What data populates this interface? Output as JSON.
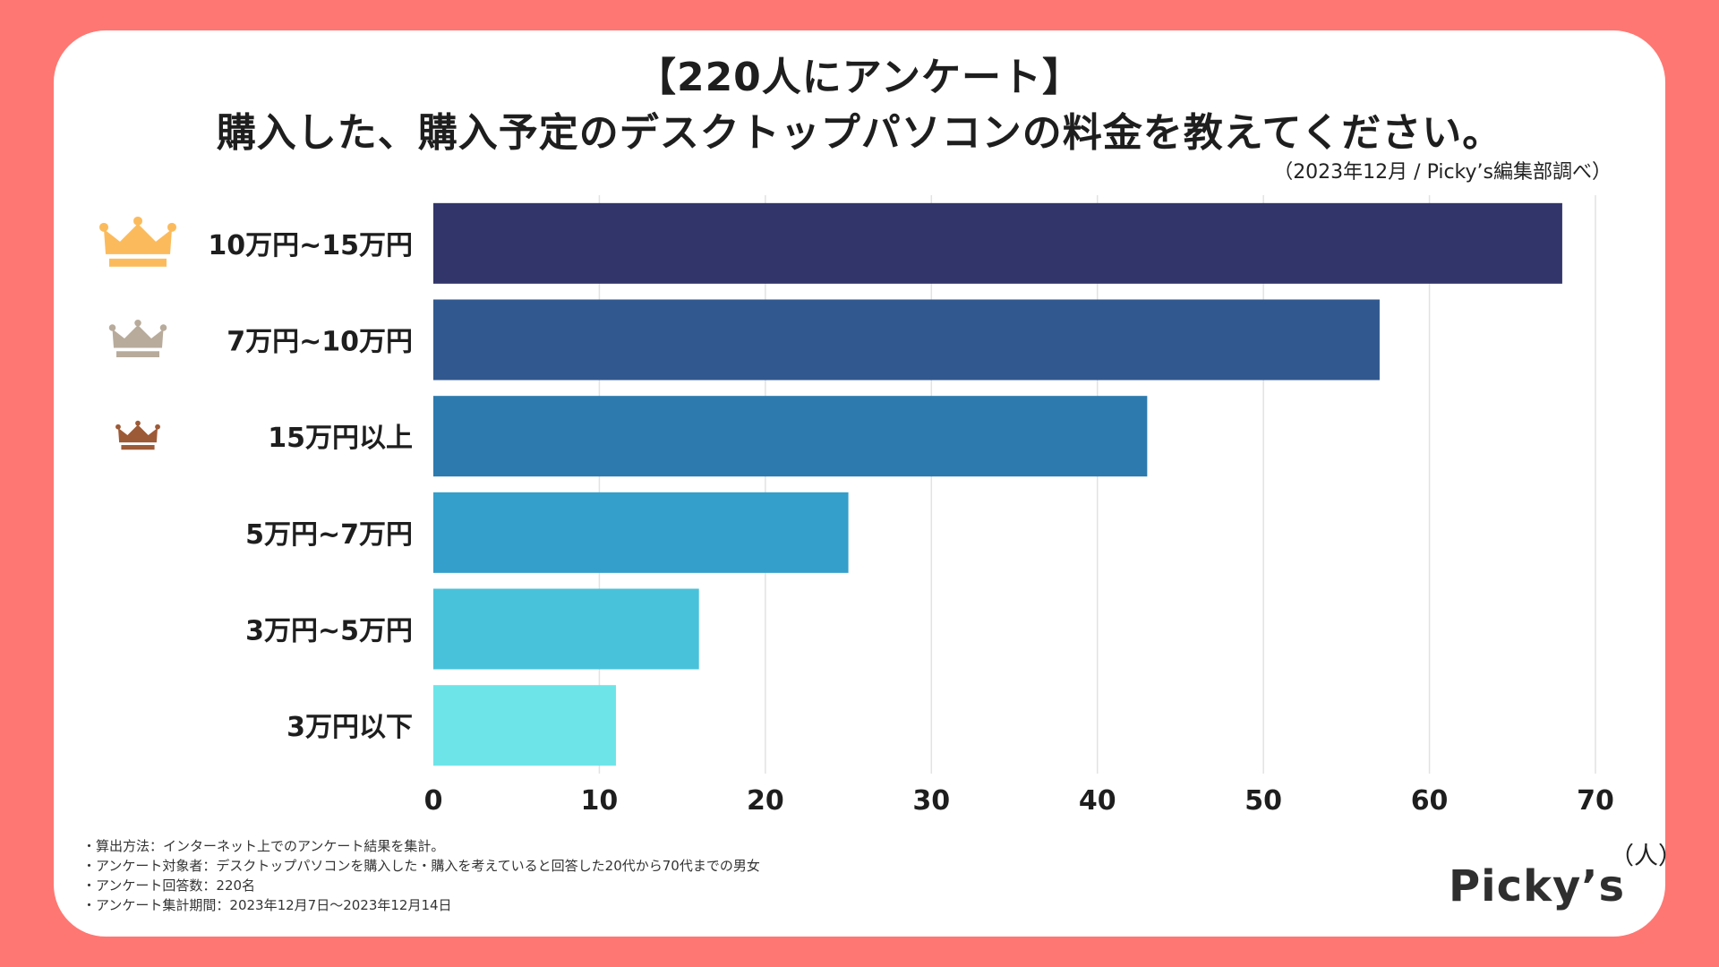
{
  "header": {
    "title_line1": "【220人にアンケート】",
    "title_line2": "購入した、購入予定のデスクトップパソコンの料金を教えてください。",
    "source": "（2023年12月 / Picky’s編集部調べ）"
  },
  "chart_data": {
    "type": "bar",
    "orientation": "horizontal",
    "categories": [
      "10万円~15万円",
      "7万円~10万円",
      "15万円以上",
      "5万円~7万円",
      "3万円~5万円",
      "3万円以下"
    ],
    "values": [
      68,
      57,
      43,
      25,
      16,
      11
    ],
    "xlim": [
      0,
      70
    ],
    "xticks": [
      "0",
      "10",
      "20",
      "30",
      "40",
      "50",
      "60",
      "70"
    ],
    "tick_values": [
      0,
      10,
      20,
      30,
      40,
      50,
      60,
      70
    ],
    "xlabel": "（人）",
    "grid": true,
    "bar_colors": [
      "#31356a",
      "#32598f",
      "#2d7aae",
      "#349fca",
      "#48c2da",
      "#6de5e8"
    ],
    "rank_icons": [
      "gold-crown-icon",
      "silver-crown-icon",
      "bronze-crown-icon"
    ],
    "rank_colors": [
      "#fbbb5c",
      "#b8ab9b",
      "#9d5a37"
    ]
  },
  "footnotes": [
    "・算出方法：インターネット上でのアンケート結果を集計。",
    "・アンケート対象者：デスクトップパソコンを購入した・購入を考えていると回答した20代から70代までの男女",
    "・アンケート回答数：220名",
    "・アンケート集計期間：2023年12月7日〜2023年12月14日"
  ],
  "brand": {
    "logo_text": "Picky’s"
  }
}
